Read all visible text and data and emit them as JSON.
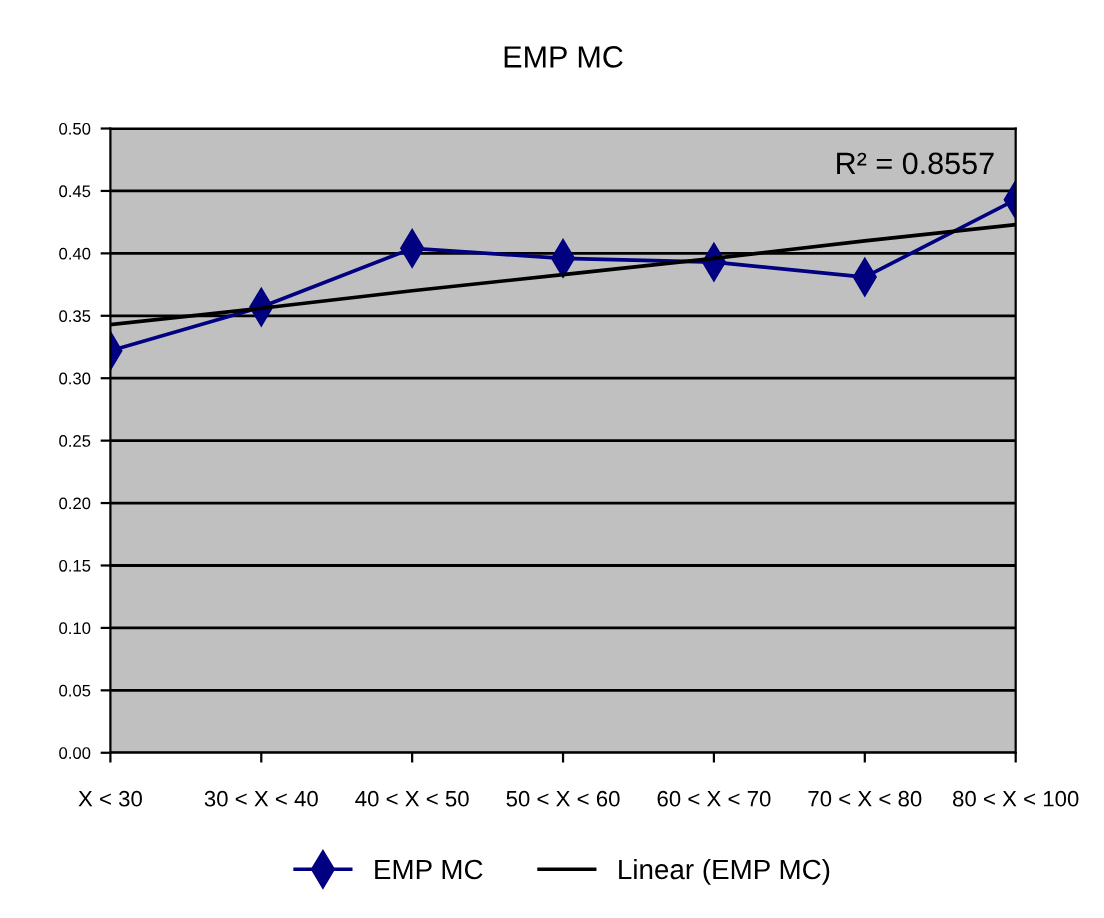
{
  "chart_data": {
    "type": "line",
    "title": "EMP MC",
    "categories": [
      "X < 30",
      "30 < X < 40",
      "40 < X < 50",
      "50 < X < 60",
      "60 < X < 70",
      "70 < X < 80",
      "80 < X < 100"
    ],
    "series": [
      {
        "name": "EMP MC",
        "color": "#000080",
        "marker": "diamond",
        "values": [
          0.322,
          0.357,
          0.404,
          0.396,
          0.393,
          0.381,
          0.443
        ]
      },
      {
        "name": "Linear (EMP MC)",
        "color": "#000000",
        "marker": "none",
        "values": [
          0.343,
          0.356,
          0.37,
          0.383,
          0.396,
          0.41,
          0.423
        ]
      }
    ],
    "ylim": [
      0,
      0.5
    ],
    "yticks": [
      {
        "value": 0,
        "label": "0.00"
      },
      {
        "value": 0.05,
        "label": "0.05"
      },
      {
        "value": 0.1,
        "label": "0.10"
      },
      {
        "value": 0.15,
        "label": "0.15"
      },
      {
        "value": 0.2,
        "label": "0.20"
      },
      {
        "value": 0.25,
        "label": "0.25"
      },
      {
        "value": 0.3,
        "label": "0.30"
      },
      {
        "value": 0.35,
        "label": "0.35"
      },
      {
        "value": 0.4,
        "label": "0.40"
      },
      {
        "value": 0.45,
        "label": "0.45"
      },
      {
        "value": 0.5,
        "label": "0.50"
      }
    ],
    "grid": "y",
    "legend": "bottom",
    "annotations": [
      "R² = 0.8557"
    ]
  }
}
